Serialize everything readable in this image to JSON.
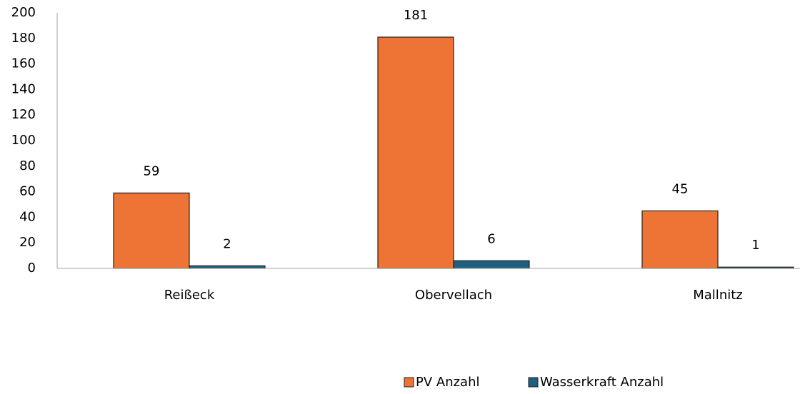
{
  "chart_data": {
    "type": "bar",
    "categories": [
      "Reißeck",
      "Obervellach",
      "Mallnitz"
    ],
    "series": [
      {
        "name": "PV Anzahl",
        "color": "#ed7434",
        "values": [
          59,
          181,
          45
        ]
      },
      {
        "name": "Wasserkraft Anzahl",
        "color": "#1f5f7f",
        "values": [
          2,
          6,
          1
        ]
      }
    ],
    "ylim": [
      0,
      200
    ],
    "yticks": [
      0,
      20,
      40,
      60,
      80,
      100,
      120,
      140,
      160,
      180,
      200
    ],
    "grid": false,
    "legend": "bottom"
  }
}
